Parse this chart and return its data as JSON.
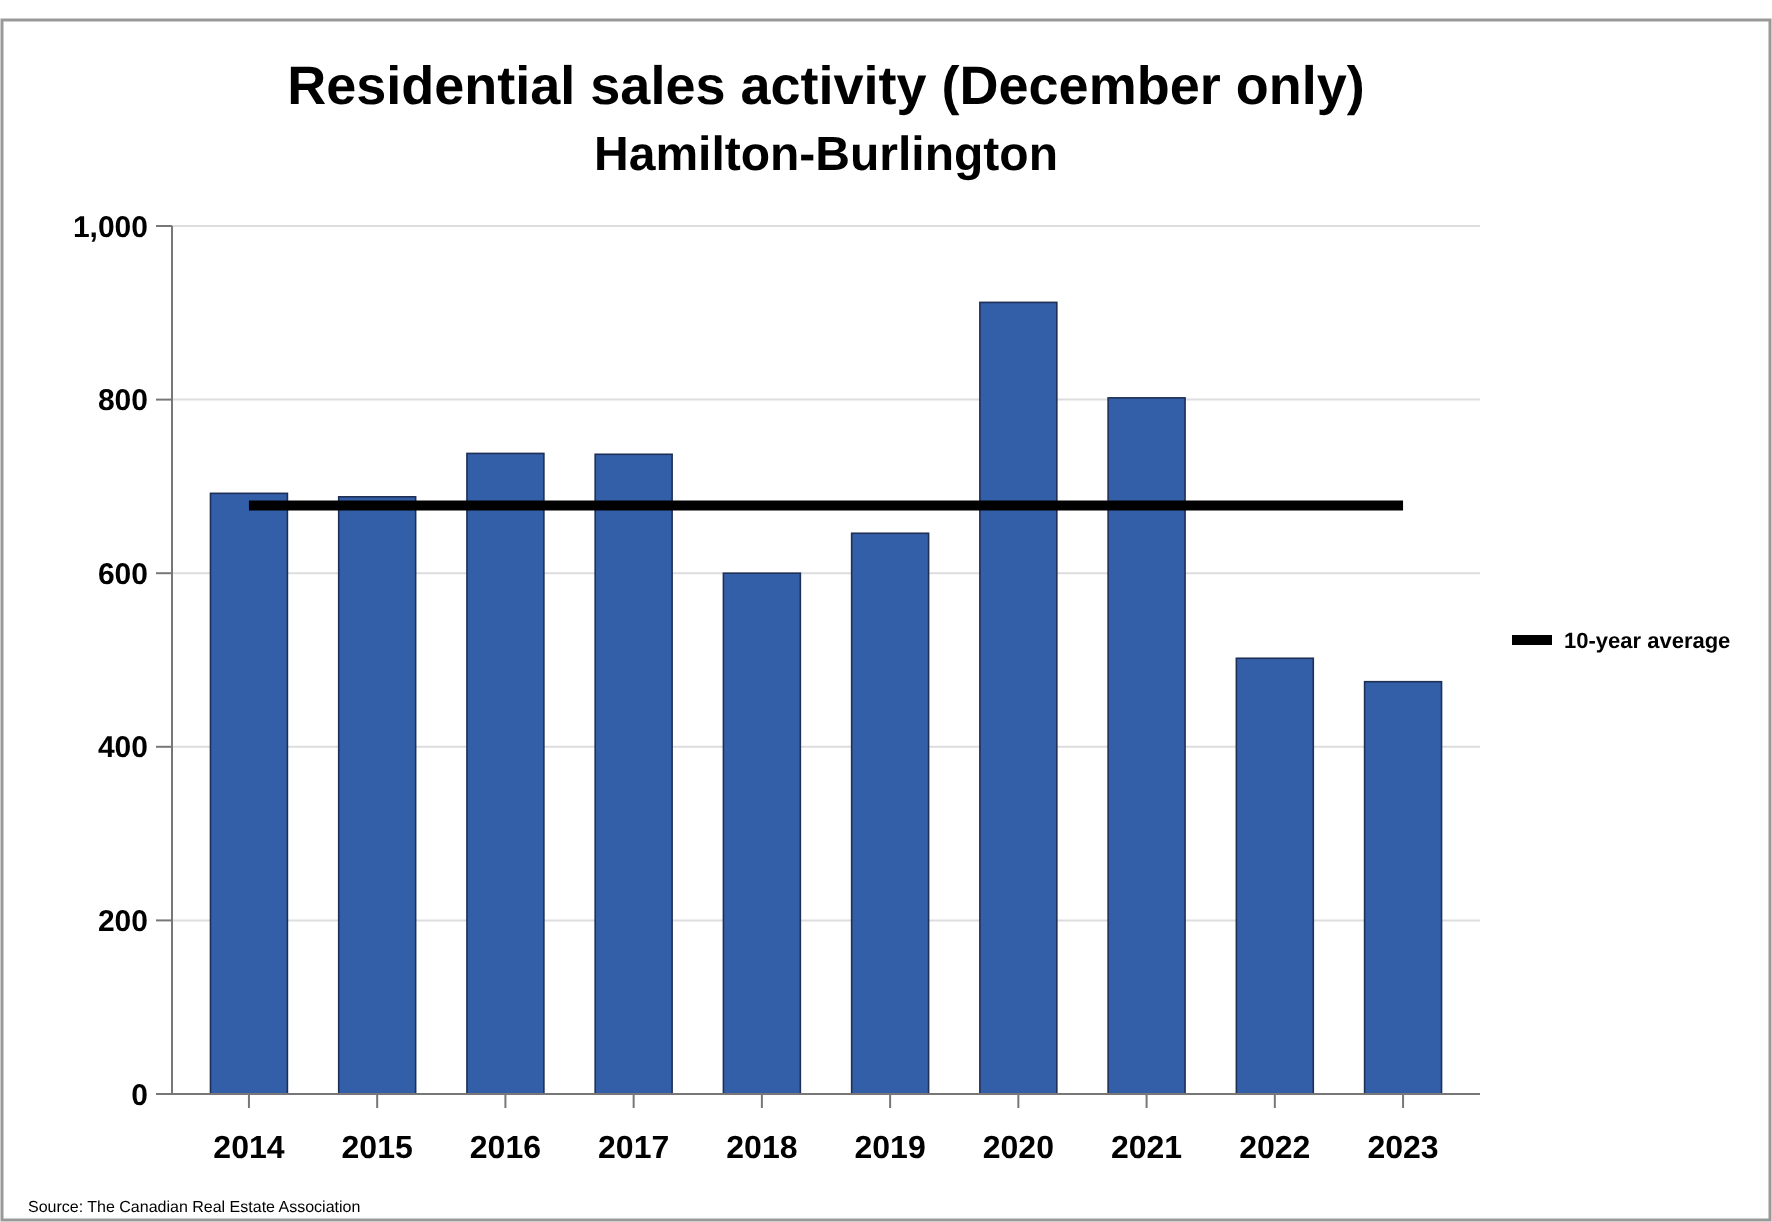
{
  "chart_data": {
    "type": "bar",
    "title": "Residential sales activity (December only)",
    "subtitle": "Hamilton-Burlington",
    "categories": [
      "2014",
      "2015",
      "2016",
      "2017",
      "2018",
      "2019",
      "2020",
      "2021",
      "2022",
      "2023"
    ],
    "series": [
      {
        "color": "#335ea8",
        "values": [
          692,
          688,
          738,
          737,
          600,
          646,
          912,
          802,
          502,
          475
        ]
      },
      {
        "type": "line",
        "name": "10-year average",
        "color": "#000000",
        "values": [
          678,
          678,
          678,
          678,
          678,
          678,
          678,
          678,
          678,
          678
        ]
      }
    ],
    "ylim": [
      0,
      1000
    ],
    "yticks": [
      0,
      {
        "value": 200,
        "label": "200"
      },
      {
        "value": 400,
        "label": "400"
      },
      {
        "value": 600,
        "label": "600"
      },
      {
        "value": 800,
        "label": "800"
      },
      {
        "value": 1000,
        "label": "1,000"
      }
    ],
    "grid": "y",
    "legend": "right",
    "marker": "none",
    "line_style": "solid",
    "annotations": [
      "Source: The Canadian Real Estate Association"
    ]
  }
}
